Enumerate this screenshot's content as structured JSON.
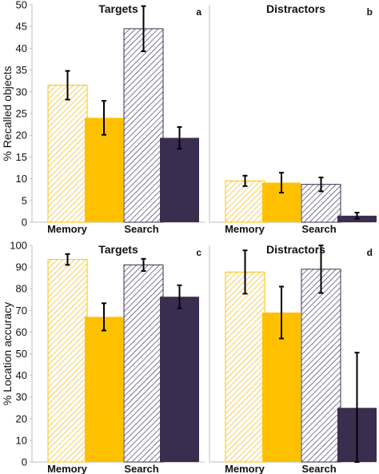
{
  "colors": {
    "memory": "#FFC000",
    "search": "#3B2D4F",
    "axis": "#bfbfbf"
  },
  "chart_data": [
    {
      "panel_label": "a",
      "title": "Targets",
      "type": "bar",
      "ylabel": "% Recalled objects",
      "ylim": [
        0,
        50
      ],
      "yticks": [
        0,
        5,
        10,
        15,
        20,
        25,
        30,
        35,
        40,
        45,
        50
      ],
      "categories": [
        "Memory",
        "Search"
      ],
      "bars": [
        {
          "category": "Memory",
          "pattern": "hatched",
          "value": 31.5,
          "error": 3.3
        },
        {
          "category": "Memory",
          "pattern": "solid",
          "value": 24.0,
          "error": 3.9
        },
        {
          "category": "Search",
          "pattern": "hatched",
          "value": 44.5,
          "error": 5.2
        },
        {
          "category": "Search",
          "pattern": "solid",
          "value": 19.4,
          "error": 2.5
        }
      ]
    },
    {
      "panel_label": "b",
      "title": "Distractors",
      "type": "bar",
      "ylabel": "",
      "ylim": [
        0,
        50
      ],
      "yticks": [],
      "categories": [
        "Memory",
        "Search"
      ],
      "bars": [
        {
          "category": "Memory",
          "pattern": "hatched",
          "value": 9.5,
          "error": 1.2
        },
        {
          "category": "Memory",
          "pattern": "solid",
          "value": 9.1,
          "error": 2.3
        },
        {
          "category": "Search",
          "pattern": "hatched",
          "value": 8.7,
          "error": 1.6
        },
        {
          "category": "Search",
          "pattern": "solid",
          "value": 1.5,
          "error": 0.7
        }
      ]
    },
    {
      "panel_label": "c",
      "title": "Targets",
      "type": "bar",
      "ylabel": "% Location accuracy",
      "ylim": [
        0,
        100
      ],
      "yticks": [
        0,
        10,
        20,
        30,
        40,
        50,
        60,
        70,
        80,
        90,
        100
      ],
      "categories": [
        "Memory",
        "Search"
      ],
      "bars": [
        {
          "category": "Memory",
          "pattern": "hatched",
          "value": 93.5,
          "error": 2.5
        },
        {
          "category": "Memory",
          "pattern": "solid",
          "value": 67.0,
          "error": 6.3
        },
        {
          "category": "Search",
          "pattern": "hatched",
          "value": 91.0,
          "error": 2.8
        },
        {
          "category": "Search",
          "pattern": "solid",
          "value": 76.3,
          "error": 5.3
        }
      ]
    },
    {
      "panel_label": "d",
      "title": "Distractors",
      "type": "bar",
      "ylabel": "",
      "ylim": [
        0,
        100
      ],
      "yticks": [],
      "categories": [
        "Memory",
        "Search"
      ],
      "bars": [
        {
          "category": "Memory",
          "pattern": "hatched",
          "value": 87.7,
          "error": 10.0
        },
        {
          "category": "Memory",
          "pattern": "solid",
          "value": 69.0,
          "error": 12.0
        },
        {
          "category": "Search",
          "pattern": "hatched",
          "value": 89.0,
          "error": 11.0
        },
        {
          "category": "Search",
          "pattern": "solid",
          "value": 25.0,
          "error": 25.5
        }
      ]
    }
  ]
}
